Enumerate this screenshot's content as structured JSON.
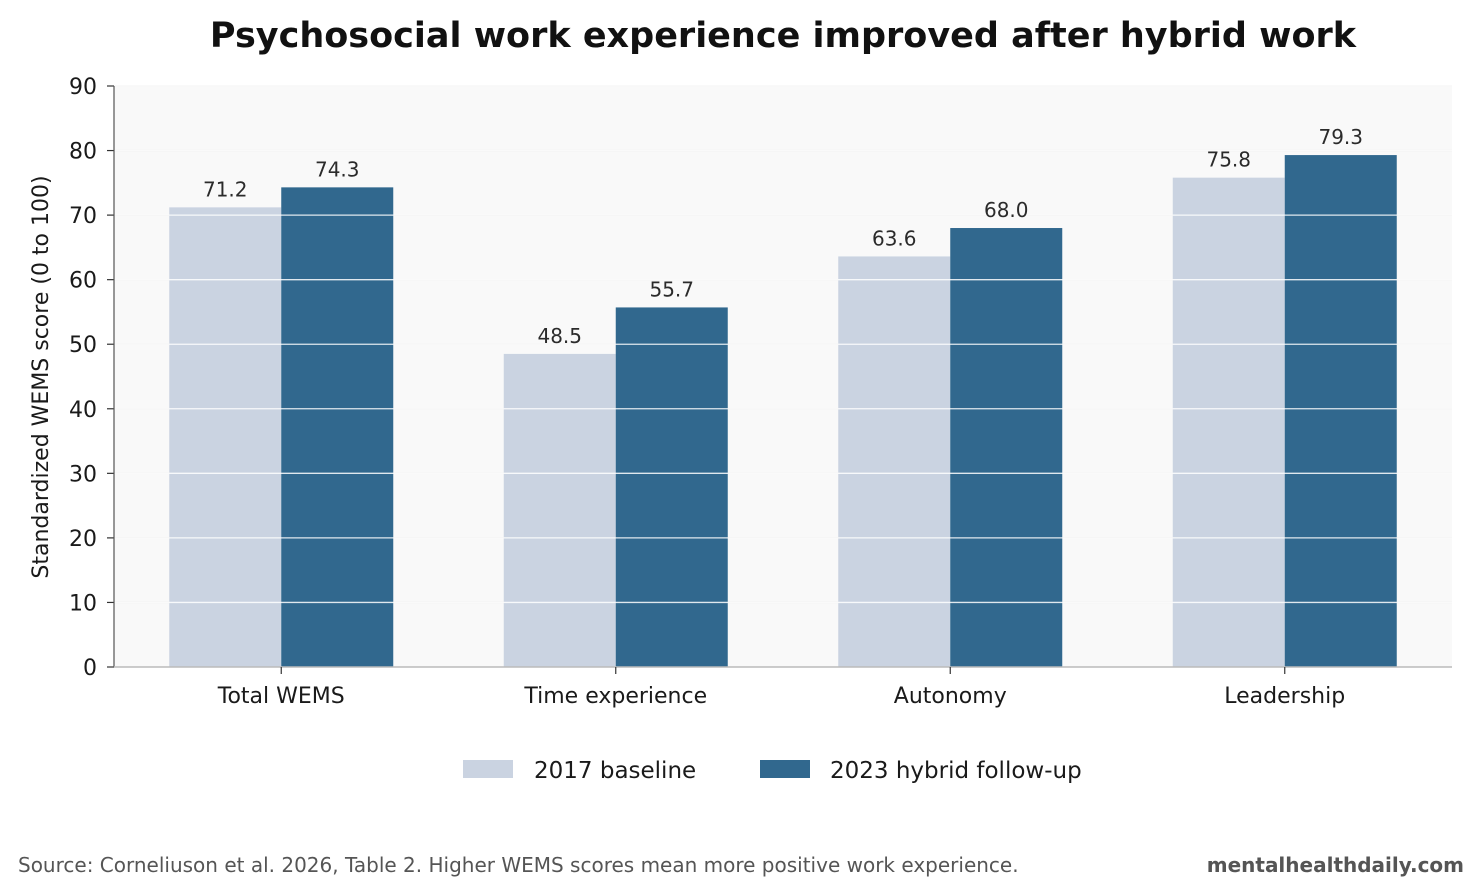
{
  "chart_data": {
    "type": "bar",
    "title": "Psychosocial work experience improved after hybrid work",
    "xlabel": "",
    "ylabel": "Standardized WEMS score (0 to 100)",
    "categories": [
      "Total WEMS",
      "Time experience",
      "Autonomy",
      "Leadership"
    ],
    "series": [
      {
        "name": "2017 baseline",
        "color": "#cad3e1",
        "values": [
          71.2,
          48.5,
          63.6,
          75.8
        ],
        "labels": [
          "71.2",
          "48.5",
          "63.6",
          "75.8"
        ]
      },
      {
        "name": "2023 hybrid follow-up",
        "color": "#31688e",
        "values": [
          74.3,
          55.7,
          68.0,
          79.3
        ],
        "labels": [
          "74.3",
          "55.7",
          "68.0",
          "79.3"
        ]
      }
    ],
    "ylim": [
      0,
      90
    ],
    "yticks": [
      0,
      10,
      20,
      30,
      40,
      50,
      60,
      70,
      80,
      90
    ],
    "grid": true,
    "legend_position": "bottom-center",
    "plot_background": "#f9f9f9",
    "grid_color": "#dddddd"
  },
  "footer": {
    "source": "Source: Corneliuson et al. 2026, Table 2. Higher WEMS scores mean more positive work experience.",
    "brand": "mentalhealthdaily.com"
  }
}
